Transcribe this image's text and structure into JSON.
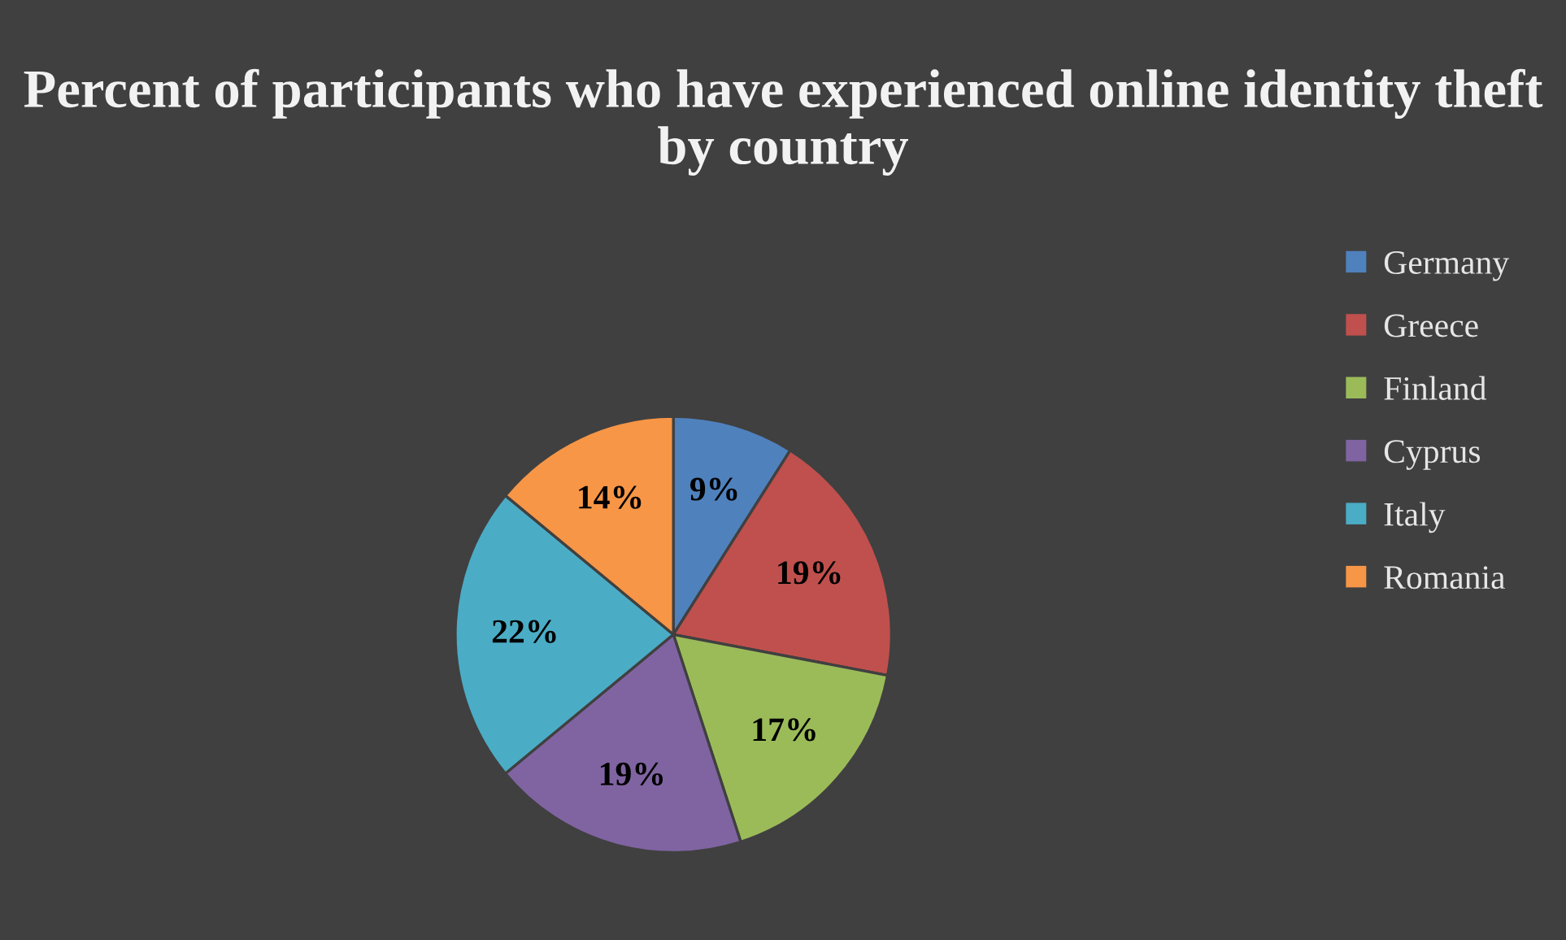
{
  "chart_data": {
    "type": "pie",
    "title": "Percent of participants who have experienced online identity theft by country",
    "categories": [
      "Germany",
      "Greece",
      "Finland",
      "Cyprus",
      "Italy",
      "Romania"
    ],
    "values": [
      9,
      19,
      17,
      19,
      22,
      14
    ],
    "colors": [
      "#4f81bd",
      "#c0504d",
      "#9bbb59",
      "#8064a2",
      "#4bacc6",
      "#f79646"
    ],
    "value_labels": [
      "9%",
      "19%",
      "17%",
      "19%",
      "22%",
      "14%"
    ],
    "legend": "right"
  }
}
